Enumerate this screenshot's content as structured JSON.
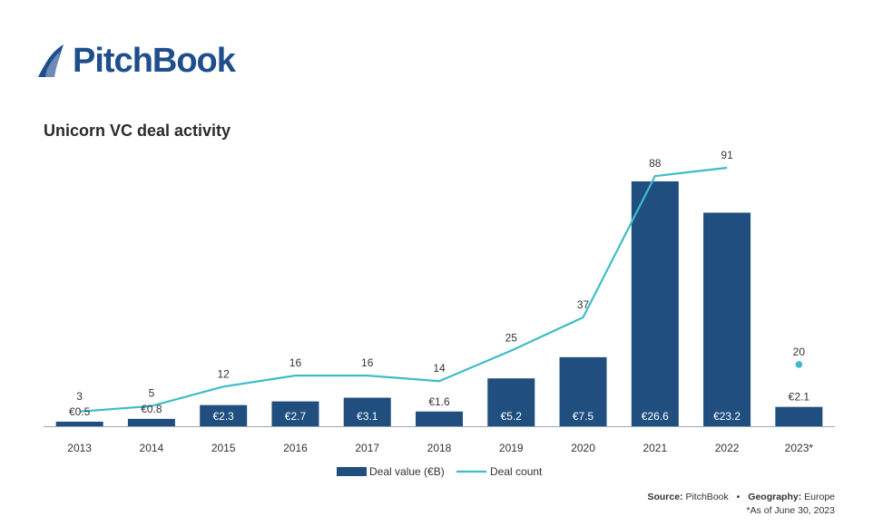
{
  "brand": {
    "name": "PitchBook",
    "color": "#1f4e8c"
  },
  "chart_title": "Unicorn VC deal activity",
  "source": {
    "source_label": "Source:",
    "source_value": "PitchBook",
    "separator": "•",
    "geo_label": "Geography:",
    "geo_value": "Europe",
    "note": "*As of June 30, 2023"
  },
  "chart_data": {
    "type": "bar",
    "title": "Unicorn VC deal activity",
    "categories": [
      "2013",
      "2014",
      "2015",
      "2016",
      "2017",
      "2018",
      "2019",
      "2020",
      "2021",
      "2022",
      "2023*"
    ],
    "series": [
      {
        "name": "Deal value (€B)",
        "type": "bar",
        "color": "#1f4e7f",
        "values": [
          0.5,
          0.8,
          2.3,
          2.7,
          3.1,
          1.6,
          5.2,
          7.5,
          26.6,
          23.2,
          2.1
        ],
        "labels": [
          "€0.5",
          "€0.8",
          "€2.3",
          "€2.7",
          "€3.1",
          "€1.6",
          "€5.2",
          "€7.5",
          "€26.6",
          "€23.2",
          "€2.1"
        ]
      },
      {
        "name": "Deal count",
        "type": "line",
        "color": "#3fbcc9",
        "values": [
          3,
          5,
          12,
          16,
          16,
          14,
          25,
          37,
          88,
          91,
          20
        ],
        "labels": [
          "3",
          "5",
          "12",
          "16",
          "16",
          "14",
          "25",
          "37",
          "88",
          "91",
          "20"
        ]
      }
    ],
    "legend_position": "bottom",
    "grid": false
  }
}
